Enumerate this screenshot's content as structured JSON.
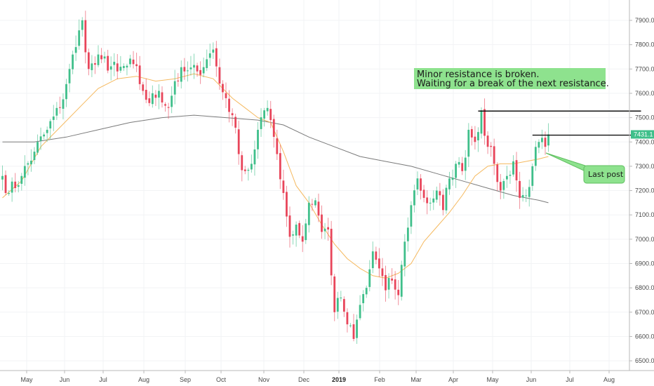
{
  "chart_data": {
    "type": "candlestick",
    "y_axis": {
      "ticks": [
        "6500.0",
        "6600.0",
        "6700.0",
        "6800.0",
        "6900.0",
        "7000.0",
        "7100.0",
        "7200.0",
        "7300.0",
        "7400.0",
        "7500.0",
        "7600.0",
        "7700.0",
        "7800.0",
        "7900.0"
      ],
      "range": [
        6470,
        7960
      ]
    },
    "x_axis": {
      "months": [
        {
          "label": "May",
          "bold": false
        },
        {
          "label": "Jun",
          "bold": false
        },
        {
          "label": "Jul",
          "bold": false
        },
        {
          "label": "Aug",
          "bold": false
        },
        {
          "label": "Sep",
          "bold": false
        },
        {
          "label": "Oct",
          "bold": false
        },
        {
          "label": "Nov",
          "bold": false
        },
        {
          "label": "Dec",
          "bold": false
        },
        {
          "label": "2019",
          "bold": true
        },
        {
          "label": "Feb",
          "bold": false
        },
        {
          "label": "Mar",
          "bold": false
        },
        {
          "label": "Apr",
          "bold": false
        },
        {
          "label": "May",
          "bold": false
        },
        {
          "label": "Jun",
          "bold": false
        },
        {
          "label": "Jul",
          "bold": false
        },
        {
          "label": "Aug",
          "bold": false
        }
      ]
    },
    "current_price": {
      "label": "7431.1",
      "value": 7431.1
    },
    "colors": {
      "up": "#3fbf8a",
      "down": "#e8455a",
      "ma_short": "#f5b95f",
      "ma_long": "#7a7a7a",
      "resistance": "#111111",
      "annotation_bg": "#8ee28e"
    },
    "candle_path": [
      [
        0,
        7260
      ],
      [
        2,
        7190
      ],
      [
        6,
        7260
      ],
      [
        10,
        7360
      ],
      [
        14,
        7450
      ],
      [
        18,
        7540
      ],
      [
        21,
        7700
      ],
      [
        23,
        7790
      ],
      [
        25,
        7900
      ],
      [
        27,
        7700
      ],
      [
        31,
        7740
      ],
      [
        36,
        7690
      ],
      [
        41,
        7720
      ],
      [
        44,
        7610
      ],
      [
        46,
        7560
      ],
      [
        49,
        7610
      ],
      [
        52,
        7540
      ],
      [
        54,
        7650
      ],
      [
        57,
        7690
      ],
      [
        61,
        7690
      ],
      [
        64,
        7740
      ],
      [
        66,
        7780
      ],
      [
        68,
        7640
      ],
      [
        70,
        7580
      ],
      [
        72,
        7510
      ],
      [
        74,
        7350
      ],
      [
        76,
        7280
      ],
      [
        78,
        7310
      ],
      [
        80,
        7450
      ],
      [
        82,
        7530
      ],
      [
        84,
        7490
      ],
      [
        86,
        7350
      ],
      [
        88,
        7190
      ],
      [
        90,
        7010
      ],
      [
        92,
        7060
      ],
      [
        94,
        6990
      ],
      [
        96,
        7150
      ],
      [
        98,
        7160
      ],
      [
        100,
        7030
      ],
      [
        102,
        7040
      ],
      [
        104,
        6700
      ],
      [
        106,
        6760
      ],
      [
        108,
        6650
      ],
      [
        110,
        6590
      ],
      [
        112,
        6730
      ],
      [
        114,
        6800
      ],
      [
        116,
        6950
      ],
      [
        118,
        6880
      ],
      [
        120,
        6790
      ],
      [
        122,
        6830
      ],
      [
        124,
        6770
      ],
      [
        126,
        6990
      ],
      [
        128,
        7140
      ],
      [
        130,
        7250
      ],
      [
        132,
        7170
      ],
      [
        134,
        7150
      ],
      [
        136,
        7200
      ],
      [
        138,
        7120
      ],
      [
        140,
        7250
      ],
      [
        142,
        7310
      ],
      [
        144,
        7280
      ],
      [
        146,
        7450
      ],
      [
        148,
        7400
      ],
      [
        150,
        7530
      ],
      [
        152,
        7380
      ],
      [
        154,
        7310
      ],
      [
        156,
        7200
      ],
      [
        158,
        7260
      ],
      [
        160,
        7320
      ],
      [
        162,
        7170
      ],
      [
        164,
        7180
      ],
      [
        166,
        7300
      ],
      [
        168,
        7400
      ],
      [
        170,
        7380
      ],
      [
        171,
        7431
      ]
    ],
    "ma_short": [
      [
        0,
        7170
      ],
      [
        6,
        7240
      ],
      [
        12,
        7380
      ],
      [
        18,
        7460
      ],
      [
        24,
        7540
      ],
      [
        30,
        7620
      ],
      [
        36,
        7660
      ],
      [
        42,
        7670
      ],
      [
        48,
        7650
      ],
      [
        54,
        7660
      ],
      [
        60,
        7680
      ],
      [
        66,
        7660
      ],
      [
        72,
        7580
      ],
      [
        76,
        7540
      ],
      [
        80,
        7500
      ],
      [
        84,
        7480
      ],
      [
        88,
        7360
      ],
      [
        92,
        7220
      ],
      [
        96,
        7150
      ],
      [
        100,
        7060
      ],
      [
        104,
        6980
      ],
      [
        108,
        6920
      ],
      [
        112,
        6880
      ],
      [
        116,
        6850
      ],
      [
        120,
        6840
      ],
      [
        124,
        6860
      ],
      [
        128,
        6900
      ],
      [
        132,
        6990
      ],
      [
        136,
        7050
      ],
      [
        140,
        7110
      ],
      [
        144,
        7180
      ],
      [
        148,
        7260
      ],
      [
        152,
        7300
      ],
      [
        156,
        7310
      ],
      [
        160,
        7310
      ],
      [
        164,
        7320
      ],
      [
        168,
        7330
      ],
      [
        171,
        7340
      ]
    ],
    "ma_long": [
      [
        0,
        7400
      ],
      [
        10,
        7400
      ],
      [
        20,
        7420
      ],
      [
        30,
        7450
      ],
      [
        40,
        7480
      ],
      [
        50,
        7500
      ],
      [
        60,
        7510
      ],
      [
        70,
        7500
      ],
      [
        80,
        7490
      ],
      [
        88,
        7470
      ],
      [
        96,
        7420
      ],
      [
        104,
        7380
      ],
      [
        112,
        7340
      ],
      [
        120,
        7320
      ],
      [
        128,
        7300
      ],
      [
        136,
        7270
      ],
      [
        144,
        7240
      ],
      [
        152,
        7210
      ],
      [
        160,
        7180
      ],
      [
        168,
        7160
      ],
      [
        171,
        7150
      ]
    ],
    "resistance_levels": [
      {
        "value": 7527,
        "from": 149,
        "to": 200
      },
      {
        "value": 7428,
        "from": 166,
        "to": 200
      }
    ],
    "annotations": {
      "main_note": [
        "Minor resistance is broken.",
        "Waiting for a break of the next resistance."
      ],
      "callout": "Last post"
    }
  }
}
